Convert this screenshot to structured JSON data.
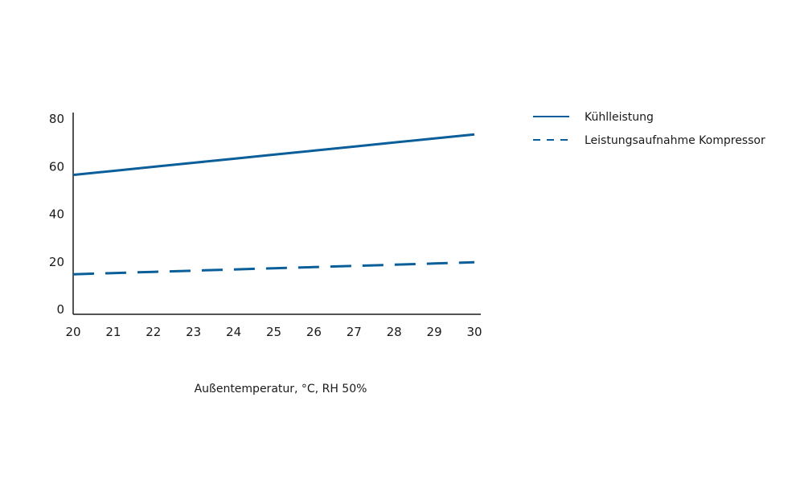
{
  "chart_data": {
    "type": "line",
    "title": "",
    "xlabel": "Außentemperatur, °C, RH 50%",
    "ylabel": "",
    "x": [
      20,
      21,
      22,
      23,
      24,
      25,
      26,
      27,
      28,
      29,
      30
    ],
    "xlim": [
      20,
      30
    ],
    "ylim": [
      0,
      80
    ],
    "xticks": [
      "20",
      "21",
      "22",
      "23",
      "24",
      "25",
      "26",
      "27",
      "28",
      "29",
      "30"
    ],
    "yticks": [
      "0",
      "20",
      "40",
      "60",
      "80"
    ],
    "grid": false,
    "legend_position": "top-right",
    "series": [
      {
        "name": "Kühlleistung",
        "style": "solid",
        "color": "#0a5f9a",
        "values": [
          56.5,
          58.2,
          59.9,
          61.6,
          63.3,
          65.0,
          66.7,
          68.4,
          70.1,
          71.8,
          73.5
        ]
      },
      {
        "name": "Leistungsaufnahme Kompressor",
        "style": "dashed",
        "color": "#0a5f9a",
        "values": [
          14.8,
          15.3,
          15.8,
          16.3,
          16.8,
          17.3,
          17.8,
          18.3,
          18.8,
          19.3,
          19.8
        ]
      }
    ]
  }
}
